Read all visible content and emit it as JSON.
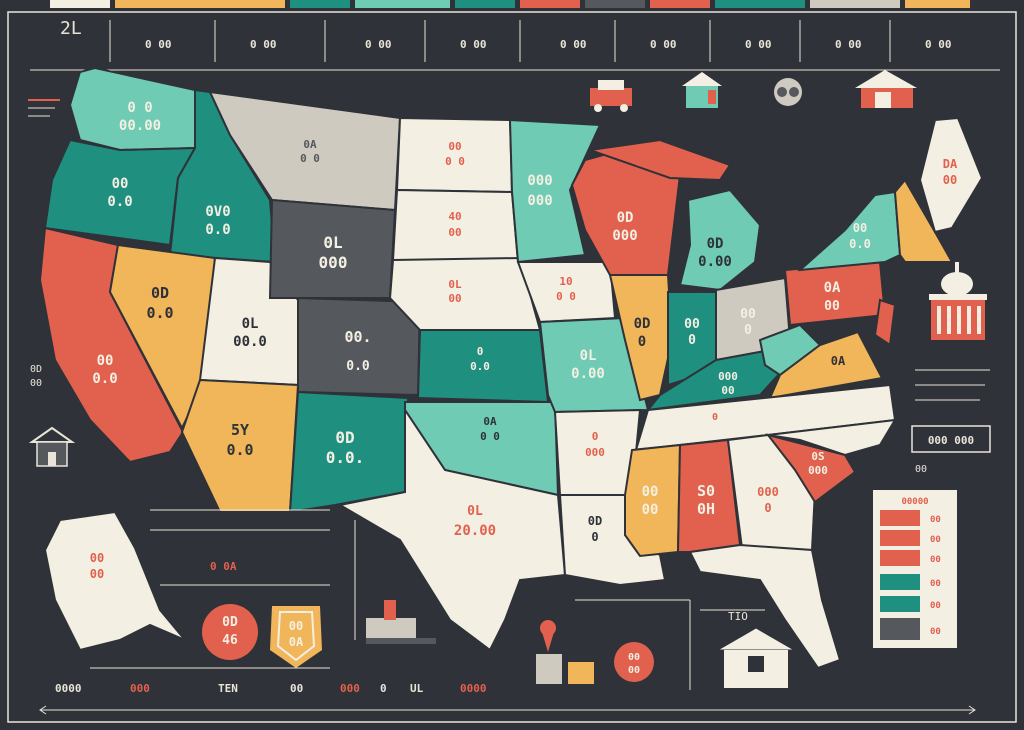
{
  "colors": {
    "background": "#2f3238",
    "cream": "#f3efe2",
    "teal": "#1f8f80",
    "mint": "#6fcbb4",
    "coral": "#e2614e",
    "orange": "#f2b65a",
    "charcoal": "#55585d",
    "gray": "#cfcac0",
    "line": "#e8e4d8"
  },
  "header": {
    "corner_label": "2L",
    "top_labels": [
      "0 00",
      "0 00",
      "0 00",
      "0 00",
      "0 00",
      "0 00",
      "0 00",
      "0 00",
      "0 00"
    ]
  },
  "states": {
    "washington": {
      "line1": "0 0",
      "line2": "00.00"
    },
    "oregon": {
      "line1": "00",
      "line2": "0.0"
    },
    "california": {
      "line1": "00",
      "line2": "0.0"
    },
    "idaho": {
      "line1": "0V0",
      "line2": "0.0"
    },
    "nevada": {
      "line1": "0D",
      "line2": "0.0"
    },
    "utah": {
      "line1": "0L",
      "line2": "00.0"
    },
    "arizona": {
      "line1": "5Y",
      "line2": "0.0"
    },
    "montana": {
      "line1": "0A",
      "line2": "0 0"
    },
    "wyoming": {
      "line1": "0L",
      "line2": "000"
    },
    "colorado": {
      "line1": "00.",
      "line2": "0.0"
    },
    "new_mexico": {
      "line1": "0D",
      "line2": "0.0."
    },
    "north_dakota": {
      "line1": "00",
      "line2": "0 0"
    },
    "south_dakota": {
      "line1": "40",
      "line2": "00"
    },
    "nebraska": {
      "line1": "0L",
      "line2": "00"
    },
    "kansas": {
      "line1": "0",
      "line2": "0.0"
    },
    "oklahoma": {
      "line1": "0A",
      "line2": "0 0"
    },
    "texas": {
      "line1": "0L",
      "line2": "20.00"
    },
    "minnesota": {
      "line1": "000",
      "line2": "000"
    },
    "iowa": {
      "line1": "10",
      "line2": "0 0"
    },
    "missouri": {
      "line1": "0L",
      "line2": "0.00"
    },
    "arkansas": {
      "line1": "0",
      "line2": "000"
    },
    "louisiana": {
      "line1": "0D",
      "line2": "0"
    },
    "wisconsin": {
      "line1": "0D",
      "line2": "000"
    },
    "illinois": {
      "line1": "0D",
      "line2": "0"
    },
    "michigan": {
      "line1": "0D",
      "line2": "0.00"
    },
    "indiana": {
      "line1": "00",
      "line2": "0"
    },
    "ohio": {
      "line1": "00",
      "line2": "0"
    },
    "kentucky": {
      "line1": "000",
      "line2": "00"
    },
    "tennessee": {
      "line1": "0",
      "line2": ""
    },
    "mississippi": {
      "line1": "00",
      "line2": "00"
    },
    "alabama": {
      "line1": "S0",
      "line2": "0H"
    },
    "georgia": {
      "line1": "000",
      "line2": "0"
    },
    "south_carolina": {
      "line1": "0S",
      "line2": "000"
    },
    "virginia": {
      "line1": "0A",
      "line2": ""
    },
    "pennsylvania": {
      "line1": "0A",
      "line2": "00"
    },
    "new_york": {
      "line1": "00",
      "line2": "0.0"
    },
    "maine": {
      "line1": "DA",
      "line2": "00"
    },
    "alaska": {
      "line1": "00",
      "line2": "00"
    }
  },
  "left_margin": {
    "label_a": "0D",
    "label_b": "00"
  },
  "bottom": {
    "circle_left": {
      "line1": "0D",
      "line2": "46"
    },
    "badge": {
      "line1": "00",
      "line2": "0A"
    },
    "circle_right": {
      "line1": "00",
      "line2": "00"
    },
    "orange_note": "0 0A",
    "mid_note": "TIO",
    "footer_labels": [
      "0000",
      "000",
      "TEN",
      "00",
      "000",
      "0",
      "UL",
      "0000"
    ]
  },
  "legend": {
    "title": "00000",
    "entries": [
      "00",
      "00",
      "00",
      "00",
      "00",
      "00"
    ]
  },
  "right_panel": {
    "box_label": "000 000",
    "fl_label": "00"
  },
  "icons": [
    "house-icon",
    "truck-icon",
    "face-icon",
    "capitol-icon",
    "map-pin-icon",
    "barn-icon",
    "shop-icon"
  ]
}
